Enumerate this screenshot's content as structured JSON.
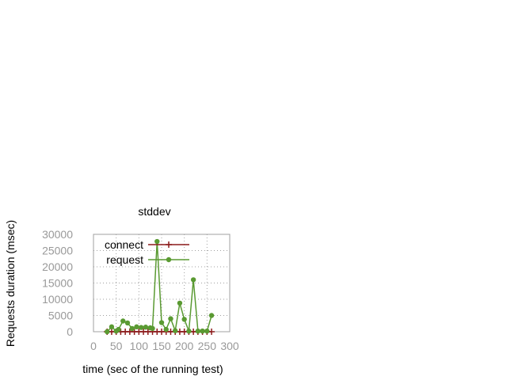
{
  "chart_data": {
    "type": "line",
    "title": "stddev",
    "xlabel": "time (sec of the running test)",
    "ylabel": "Requests duration (msec)",
    "xlim": [
      0,
      300
    ],
    "ylim": [
      0,
      30000
    ],
    "x_ticks": [
      "0",
      "50",
      "100",
      "150",
      "200",
      "250",
      "300"
    ],
    "y_ticks": [
      "0",
      "5000",
      "10000",
      "15000",
      "20000",
      "25000",
      "30000"
    ],
    "grid": true,
    "legend_position": "top-right",
    "series": [
      {
        "name": "connect",
        "color": "#8b1a1a",
        "marker": "plus",
        "x": [
          30,
          40,
          50,
          60,
          70,
          80,
          90,
          100,
          110,
          120,
          130,
          140,
          150,
          160,
          170,
          180,
          190,
          200,
          210,
          220,
          230,
          240,
          250,
          260
        ],
        "y": [
          0,
          0,
          0,
          0,
          0,
          0,
          0,
          0,
          0,
          0,
          0,
          0,
          0,
          0,
          0,
          0,
          0,
          0,
          0,
          0,
          0,
          0,
          0,
          0
        ]
      },
      {
        "name": "request",
        "color": "#5a9a32",
        "marker": "filled-circle",
        "x": [
          30,
          40,
          50,
          55,
          65,
          75,
          85,
          95,
          105,
          115,
          125,
          130,
          140,
          150,
          160,
          170,
          180,
          190,
          200,
          210,
          220,
          230,
          240,
          250,
          260
        ],
        "y": [
          0,
          1500,
          200,
          700,
          3300,
          2700,
          1000,
          1500,
          1300,
          1400,
          1200,
          1000,
          27800,
          2800,
          700,
          4000,
          300,
          8800,
          3800,
          200,
          16000,
          200,
          200,
          200,
          5000
        ]
      }
    ]
  }
}
